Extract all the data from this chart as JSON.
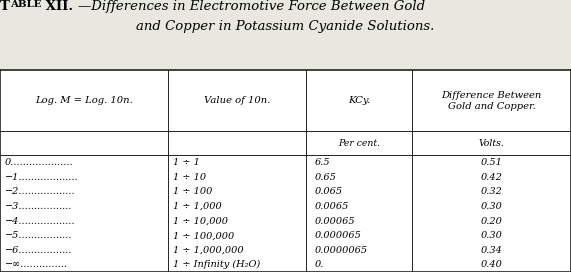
{
  "title_sc": "Table XII.",
  "title_dash": "—",
  "title_italic": "Differences in Electromotive Force Between Gold",
  "title_line2": "and Copper in Potassium Cyanide Solutions.",
  "col_headers": [
    "Log. M = Log. 10n.",
    "Value of 10n.",
    "KCy.",
    "Difference Between\nGold and Copper."
  ],
  "sub_headers": [
    "",
    "",
    "Per cent.",
    "Volts."
  ],
  "rows": [
    [
      "0",
      "1 ÷ 1",
      "6.5",
      "0.51"
    ],
    [
      "−1",
      "1 ÷ 10",
      "0.65",
      "0.42"
    ],
    [
      "−2",
      "1 ÷ 100",
      "0.065",
      "0.32"
    ],
    [
      "−3",
      "1 ÷ 1,000",
      "0.0065",
      "0.30"
    ],
    [
      "−4",
      "1 ÷ 10,000",
      "0.00065",
      "0.20"
    ],
    [
      "−5",
      "1 ÷ 100,000",
      "0.000065",
      "0.30"
    ],
    [
      "−6",
      "1 ÷ 1,000,000",
      "0.0000065",
      "0.34"
    ],
    [
      "−∞",
      "1 ÷ Infinity (H₂O)",
      "0.",
      "0.40"
    ]
  ],
  "dot_counts": [
    20,
    19,
    18,
    17,
    18,
    17,
    17,
    15
  ],
  "bg_color": "#e8e8e0",
  "table_bg": "#ffffff",
  "border_color": "#222222",
  "title_fontsize": 9.5,
  "header_fontsize": 7.2,
  "data_fontsize": 7.0,
  "fig_width": 5.89,
  "fig_height": 2.88
}
